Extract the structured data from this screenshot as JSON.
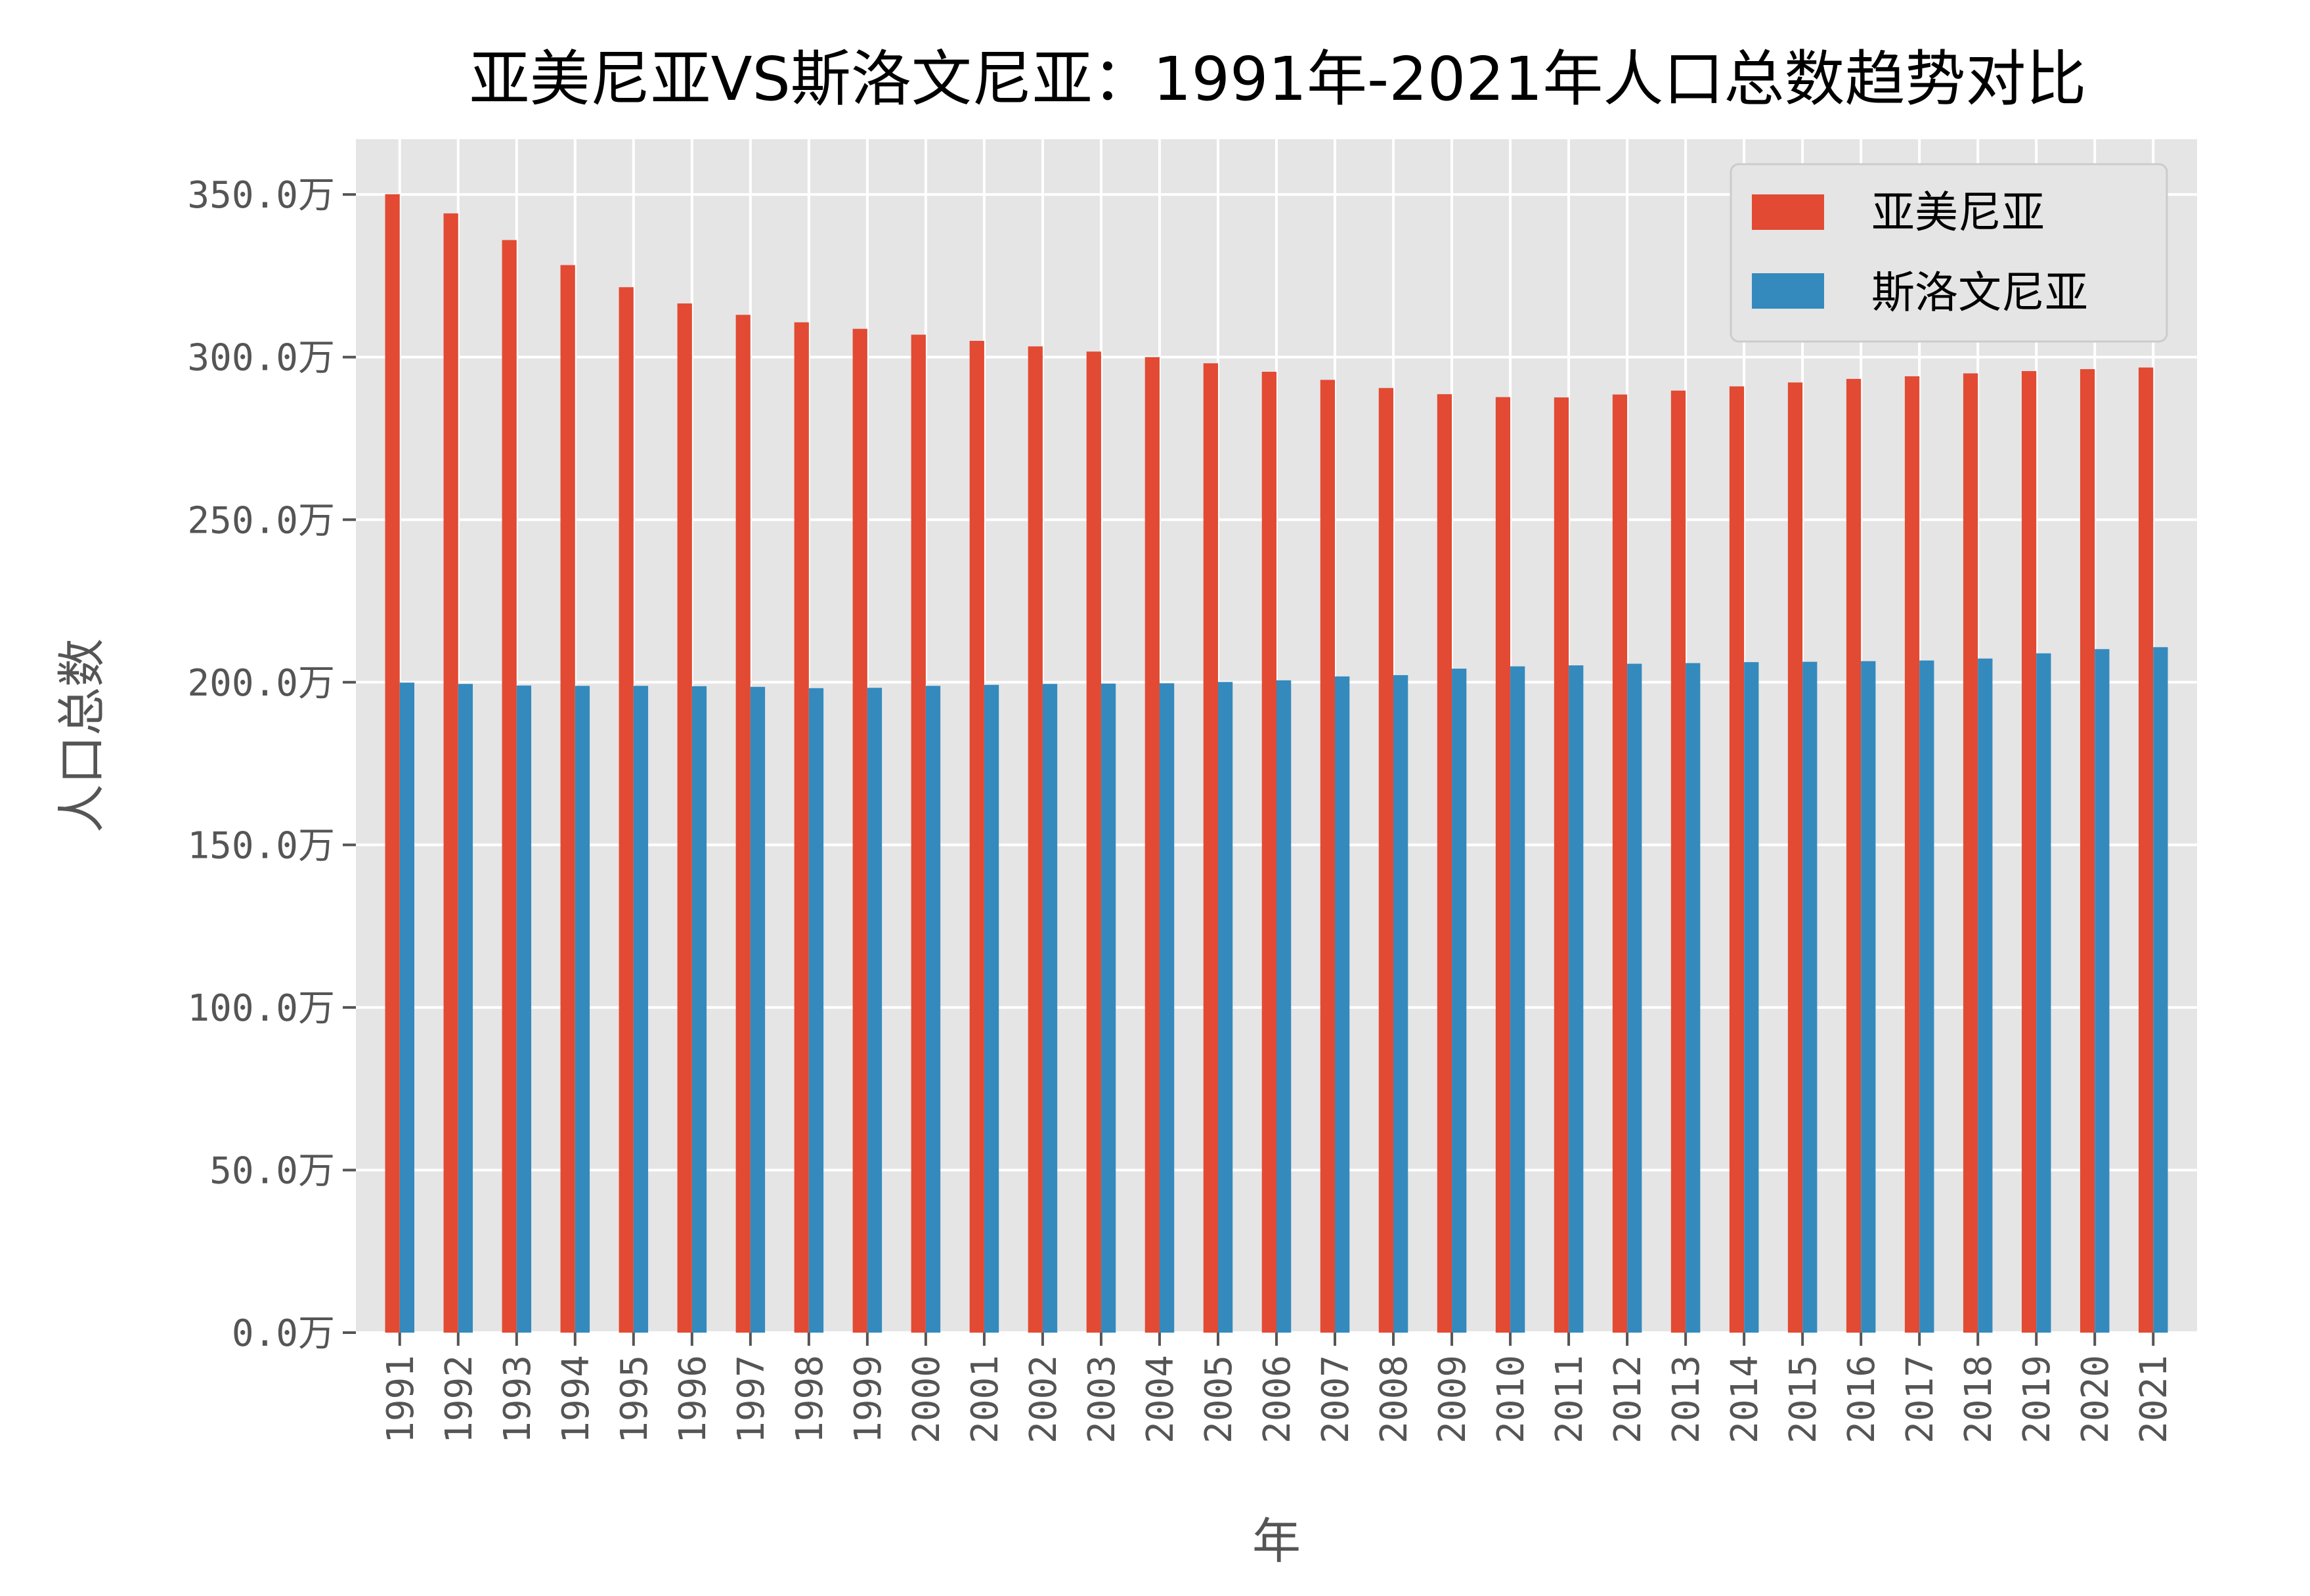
{
  "chart_data": {
    "type": "bar",
    "title": "亚美尼亚VS斯洛文尼亚：1991年-2021年人口总数趋势对比",
    "xlabel": "年",
    "ylabel": "人口总数",
    "categories": [
      "1991",
      "1992",
      "1993",
      "1994",
      "1995",
      "1996",
      "1997",
      "1998",
      "1999",
      "2000",
      "2001",
      "2002",
      "2003",
      "2004",
      "2005",
      "2006",
      "2007",
      "2008",
      "2009",
      "2010",
      "2011",
      "2012",
      "2013",
      "2014",
      "2015",
      "2016",
      "2017",
      "2018",
      "2019",
      "2020",
      "2021"
    ],
    "series": [
      {
        "name": "亚美尼亚",
        "color": "#E24A33",
        "values": [
          350.1,
          344.2,
          336.0,
          328.3,
          321.5,
          316.5,
          313.0,
          310.7,
          308.7,
          306.9,
          305.0,
          303.3,
          301.7,
          300.0,
          298.1,
          295.5,
          293.0,
          290.5,
          288.6,
          287.7,
          287.6,
          288.5,
          289.7,
          291.0,
          292.2,
          293.3,
          294.1,
          295.0,
          295.7,
          296.3,
          296.8
        ]
      },
      {
        "name": "斯洛文尼亚",
        "color": "#348ABD",
        "values": [
          199.9,
          199.5,
          199.0,
          198.9,
          198.9,
          198.8,
          198.6,
          198.2,
          198.3,
          198.9,
          199.2,
          199.5,
          199.6,
          199.7,
          200.1,
          200.6,
          201.8,
          202.2,
          204.2,
          204.9,
          205.2,
          205.7,
          205.9,
          206.2,
          206.3,
          206.5,
          206.7,
          207.3,
          208.9,
          210.2,
          210.8
        ]
      }
    ],
    "yticks": [
      "0.0万",
      "50.0万",
      "100.0万",
      "150.0万",
      "200.0万",
      "250.0万",
      "300.0万",
      "350.0万"
    ],
    "ylim": [
      0,
      367
    ],
    "grid": true,
    "legend_position": "top-right"
  }
}
